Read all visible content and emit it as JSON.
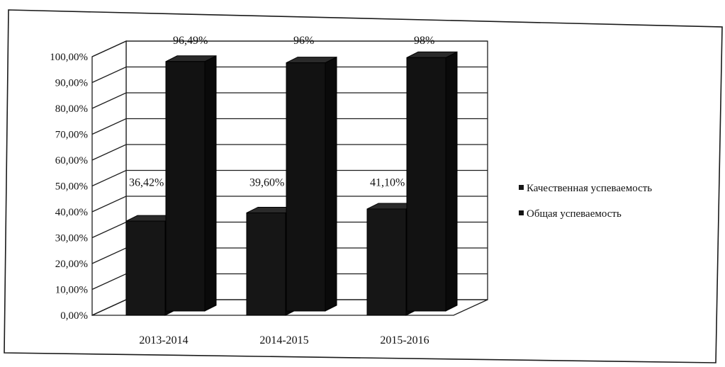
{
  "chart_data": {
    "type": "bar",
    "style": "3d-column",
    "categories": [
      "2013-2014",
      "2014-2015",
      "2015-2016"
    ],
    "series": [
      {
        "name": "Качественная успеваемость",
        "values": [
          36.42,
          39.6,
          41.1
        ],
        "labels": [
          "36,42%",
          "39,60%",
          "41,10%"
        ],
        "color": "#161616"
      },
      {
        "name": "Общая успеваемость",
        "values": [
          96.49,
          96,
          98
        ],
        "labels": [
          "96,49%",
          "96%",
          "98%"
        ],
        "color": "#121212"
      }
    ],
    "y_ticks": [
      "0,00%",
      "10,00%",
      "20,00%",
      "30,00%",
      "40,00%",
      "50,00%",
      "60,00%",
      "70,00%",
      "80,00%",
      "90,00%",
      "100,00%"
    ],
    "ylim": [
      0,
      100
    ],
    "grid": true,
    "legend_position": "right",
    "title": "",
    "xlabel": "",
    "ylabel": ""
  }
}
